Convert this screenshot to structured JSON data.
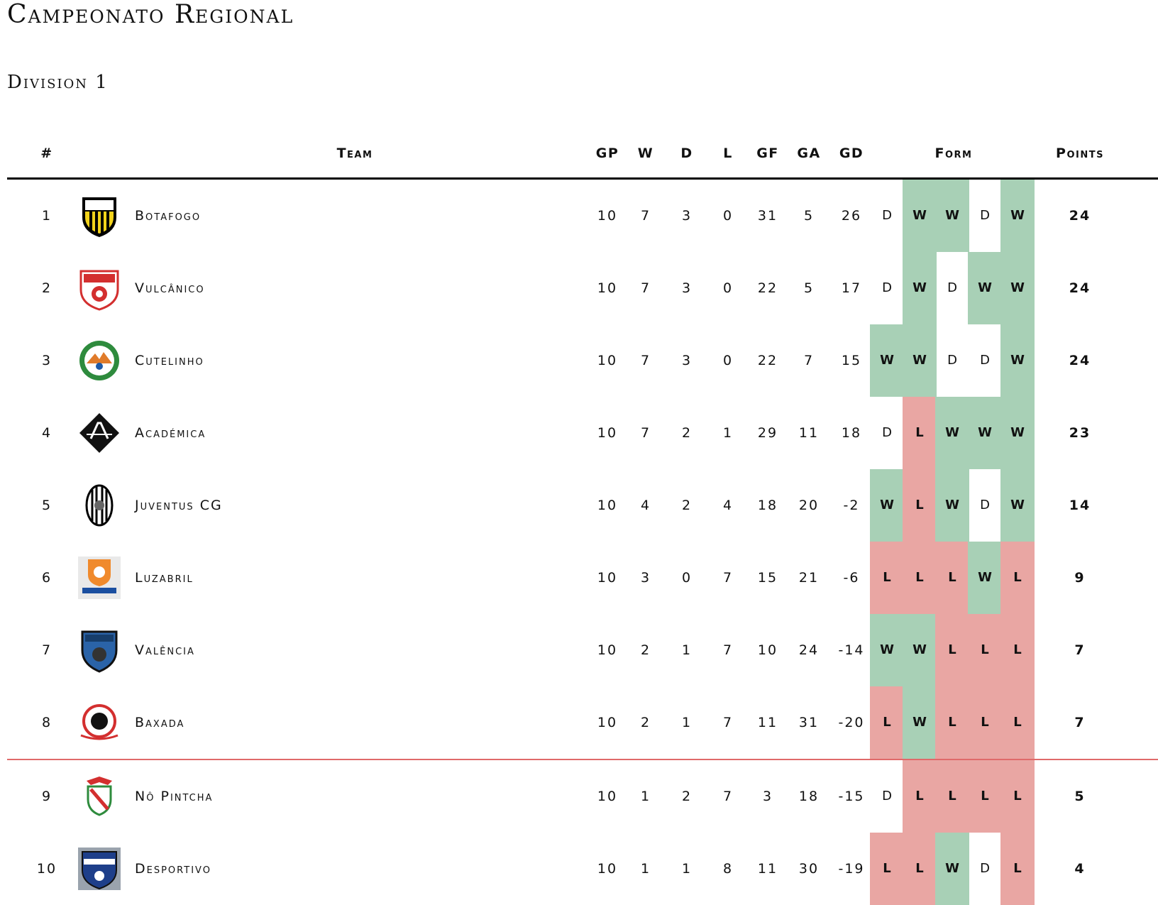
{
  "title": "Campeonato Regional",
  "subtitle": "Division 1",
  "headers": {
    "rank": "#",
    "team": "Team",
    "gp": "GP",
    "w": "W",
    "d": "D",
    "l": "L",
    "gf": "GF",
    "ga": "GA",
    "gd": "GD",
    "form": "Form",
    "points": "Points"
  },
  "colors": {
    "win": "#a8d0b6",
    "loss": "#e9a6a3",
    "relegation_line": "#e06a6a"
  },
  "rows": [
    {
      "rank": "1",
      "team": "Botafogo",
      "logo": "botafogo-crest-icon",
      "gp": "10",
      "w": "7",
      "d": "3",
      "l": "0",
      "gf": "31",
      "ga": "5",
      "gd": "26",
      "form": [
        "D",
        "W",
        "W",
        "D",
        "W"
      ],
      "points": "24"
    },
    {
      "rank": "2",
      "team": "Vulcânico",
      "logo": "vulcanico-crest-icon",
      "gp": "10",
      "w": "7",
      "d": "3",
      "l": "0",
      "gf": "22",
      "ga": "5",
      "gd": "17",
      "form": [
        "D",
        "W",
        "D",
        "W",
        "W"
      ],
      "points": "24"
    },
    {
      "rank": "3",
      "team": "Cutelinho",
      "logo": "cutelinho-crest-icon",
      "gp": "10",
      "w": "7",
      "d": "3",
      "l": "0",
      "gf": "22",
      "ga": "7",
      "gd": "15",
      "form": [
        "W",
        "W",
        "D",
        "D",
        "W"
      ],
      "points": "24"
    },
    {
      "rank": "4",
      "team": "Académica",
      "logo": "academica-crest-icon",
      "gp": "10",
      "w": "7",
      "d": "2",
      "l": "1",
      "gf": "29",
      "ga": "11",
      "gd": "18",
      "form": [
        "D",
        "L",
        "W",
        "W",
        "W"
      ],
      "points": "23"
    },
    {
      "rank": "5",
      "team": "Juventus CG",
      "logo": "juventus-crest-icon",
      "gp": "10",
      "w": "4",
      "d": "2",
      "l": "4",
      "gf": "18",
      "ga": "20",
      "gd": "-2",
      "form": [
        "W",
        "L",
        "W",
        "D",
        "W"
      ],
      "points": "14"
    },
    {
      "rank": "6",
      "team": "Luzabril",
      "logo": "luzabril-crest-icon",
      "gp": "10",
      "w": "3",
      "d": "0",
      "l": "7",
      "gf": "15",
      "ga": "21",
      "gd": "-6",
      "form": [
        "L",
        "L",
        "L",
        "W",
        "L"
      ],
      "points": "9"
    },
    {
      "rank": "7",
      "team": "Valência",
      "logo": "valencia-crest-icon",
      "gp": "10",
      "w": "2",
      "d": "1",
      "l": "7",
      "gf": "10",
      "ga": "24",
      "gd": "-14",
      "form": [
        "W",
        "W",
        "L",
        "L",
        "L"
      ],
      "points": "7"
    },
    {
      "rank": "8",
      "team": "Baxada",
      "logo": "baxada-crest-icon",
      "gp": "10",
      "w": "2",
      "d": "1",
      "l": "7",
      "gf": "11",
      "ga": "31",
      "gd": "-20",
      "form": [
        "L",
        "W",
        "L",
        "L",
        "L"
      ],
      "points": "7"
    },
    {
      "rank": "9",
      "team": "Nô Pintcha",
      "logo": "no-pintcha-crest-icon",
      "gp": "10",
      "w": "1",
      "d": "2",
      "l": "7",
      "gf": "3",
      "ga": "18",
      "gd": "-15",
      "form": [
        "D",
        "L",
        "L",
        "L",
        "L"
      ],
      "points": "5"
    },
    {
      "rank": "10",
      "team": "Desportivo",
      "logo": "desportivo-crest-icon",
      "gp": "10",
      "w": "1",
      "d": "1",
      "l": "8",
      "gf": "11",
      "ga": "30",
      "gd": "-19",
      "form": [
        "L",
        "L",
        "W",
        "D",
        "L"
      ],
      "points": "4"
    }
  ]
}
